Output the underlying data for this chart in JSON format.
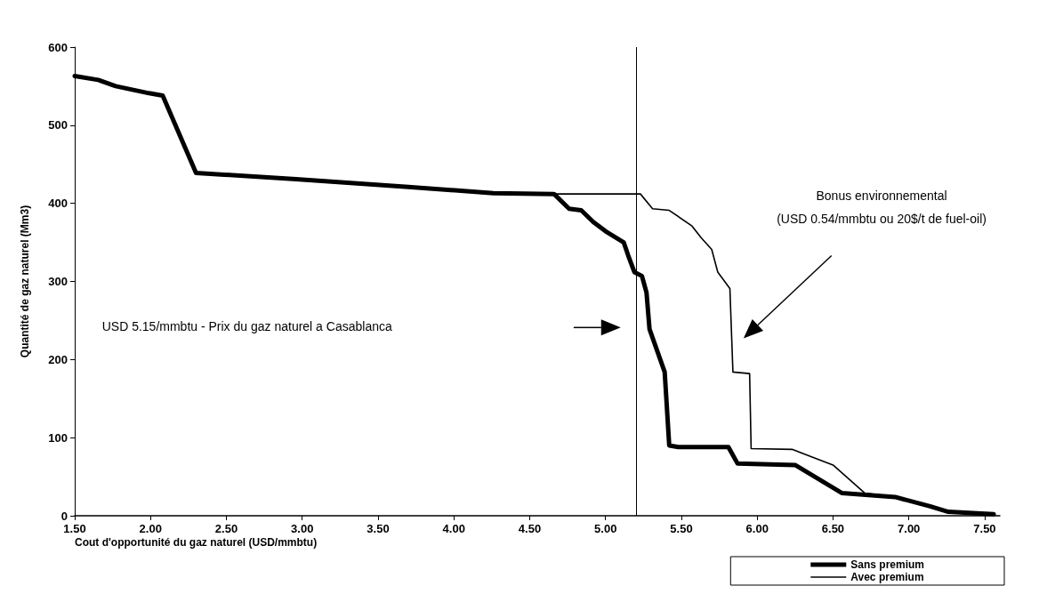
{
  "chart_data": {
    "type": "line",
    "xlabel": "Cout d'opportunité du gaz naturel (USD/mmbtu)",
    "ylabel": "Quantité de gaz naturel (Mm3)",
    "xlim": [
      1.5,
      7.6
    ],
    "xticks": [
      {
        "value": 1.5,
        "label": "1.50"
      },
      {
        "value": 2,
        "label": "2.00"
      },
      {
        "value": 2.5,
        "label": "2.50"
      },
      {
        "value": 3,
        "label": "3.00"
      },
      {
        "value": 3.5,
        "label": "3.50"
      },
      {
        "value": 4,
        "label": "4.00"
      },
      {
        "value": 4.5,
        "label": "4.50"
      },
      {
        "value": 5,
        "label": "5.00"
      },
      {
        "value": 5.5,
        "label": "5.50"
      },
      {
        "value": 6,
        "label": "6.00"
      },
      {
        "value": 6.5,
        "label": "6.50"
      },
      {
        "value": 7,
        "label": "7.00"
      },
      {
        "value": 7.5,
        "label": "7.50"
      }
    ],
    "ylim": [
      0,
      600
    ],
    "yticks": [
      0,
      100,
      200,
      300,
      400,
      500,
      600
    ],
    "grid": false,
    "legend": "bottom right",
    "marker": "none",
    "line_style": "solid",
    "series": [
      {
        "name": "Sans premium",
        "color": "#000000",
        "x": [
          1.5,
          1.655,
          1.77,
          1.99,
          2.08,
          2.3,
          2.96,
          3.7,
          4.26,
          4.66,
          4.76,
          4.84,
          4.92,
          5.01,
          5.12,
          5.15,
          5.19,
          5.24,
          5.27,
          5.29,
          5.39,
          5.42,
          5.48,
          5.81,
          5.87,
          6.25,
          6.56,
          6.91,
          7.14,
          7.26,
          7.56
        ],
        "values": [
          563,
          558,
          550,
          541,
          538,
          439,
          431,
          421,
          413,
          412,
          393,
          391,
          376,
          363,
          350,
          333,
          312,
          307,
          286,
          239,
          184,
          90,
          88,
          88,
          67,
          65,
          29,
          24,
          12,
          5,
          2
        ]
      },
      {
        "name": "Avec premium",
        "color": "#000000",
        "x": [
          1.5,
          1.655,
          1.77,
          1.99,
          2.08,
          2.3,
          2.96,
          3.7,
          4.26,
          4.66,
          5.23,
          5.31,
          5.42,
          5.57,
          5.63,
          5.7,
          5.74,
          5.82,
          5.84,
          5.95,
          5.96,
          6.23,
          6.5,
          6.71,
          6.91,
          7.14,
          7.26,
          7.56
        ],
        "values": [
          563,
          558,
          550,
          541,
          538,
          439,
          431,
          421,
          413,
          412,
          412,
          393,
          391,
          371,
          356,
          341,
          312,
          291,
          184,
          182,
          86,
          85,
          65,
          29,
          24,
          12,
          5,
          2
        ]
      }
    ],
    "ref_lines": [
      {
        "axis": "x",
        "value": 5.2,
        "color": "#000000",
        "line_style": "solid"
      }
    ],
    "annotations": [
      "USD 5.15/mmbtu - Prix du gaz naturel a Casablanca",
      "Bonus environnemental\n(USD 0.54/mmbtu ou 20$/t de fuel-oil)"
    ]
  }
}
